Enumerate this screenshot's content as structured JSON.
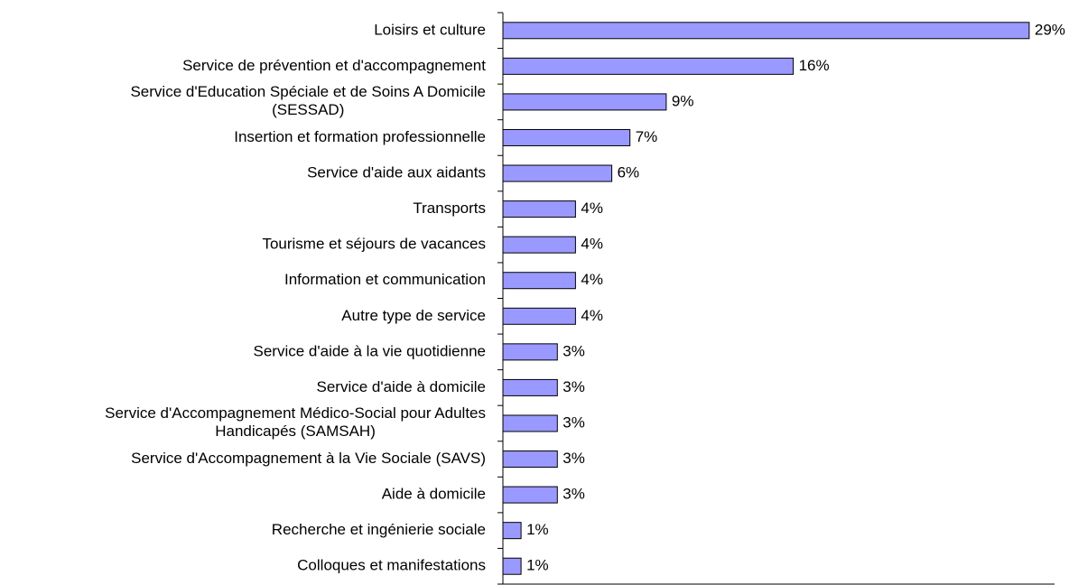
{
  "chart_data": {
    "type": "barh",
    "categories": [
      "Loisirs et culture",
      "Service de prévention et d'accompagnement",
      "Service d'Education Spéciale et de Soins A Domicile\n(SESSAD)",
      "Insertion et formation professionnelle",
      "Service d'aide aux aidants",
      "Transports",
      "Tourisme et séjours de vacances",
      "Information et communication",
      "Autre type de service",
      "Service d'aide à la vie quotidienne",
      "Service d'aide à domicile",
      "Service d'Accompagnement Médico-Social pour Adultes\nHandicapés (SAMSAH)",
      "Service d'Accompagnement à la Vie Sociale (SAVS)",
      "Aide à domicile",
      "Recherche et ingénierie sociale",
      "Colloques et manifestations"
    ],
    "values": [
      29,
      16,
      9,
      7,
      6,
      4,
      4,
      4,
      4,
      3,
      3,
      3,
      3,
      3,
      1,
      1
    ],
    "value_labels": [
      "29%",
      "16%",
      "9%",
      "7%",
      "6%",
      "4%",
      "4%",
      "4%",
      "4%",
      "3%",
      "3%",
      "3%",
      "3%",
      "3%",
      "1%",
      "1%"
    ],
    "color": "#9999ff",
    "xlim": [
      0,
      30
    ]
  }
}
